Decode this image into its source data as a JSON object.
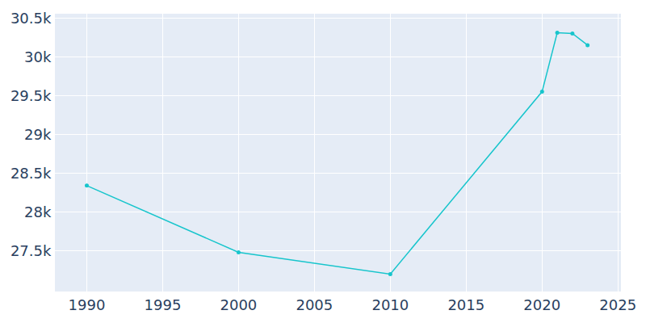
{
  "chart_data": {
    "type": "line",
    "x": [
      1990,
      2000,
      2010,
      2020,
      2021,
      2022,
      2023
    ],
    "values": [
      28340,
      27480,
      27200,
      29550,
      30310,
      30300,
      30150
    ],
    "color": "#17c5cc",
    "marker": "circle",
    "xlim": [
      1987.9,
      2025.2
    ],
    "xticks": [
      1990,
      1995,
      2000,
      2005,
      2010,
      2015,
      2020,
      2025
    ],
    "ylim": [
      26975,
      30555
    ],
    "yticks": [
      {
        "value": 27500,
        "label": "27.5k"
      },
      {
        "value": 28000,
        "label": "28k"
      },
      {
        "value": 28500,
        "label": "28.5k"
      },
      {
        "value": 29000,
        "label": "29k"
      },
      {
        "value": 29500,
        "label": "29.5k"
      },
      {
        "value": 30000,
        "label": "30k"
      },
      {
        "value": 30500,
        "label": "30.5k"
      }
    ],
    "grid": true
  }
}
